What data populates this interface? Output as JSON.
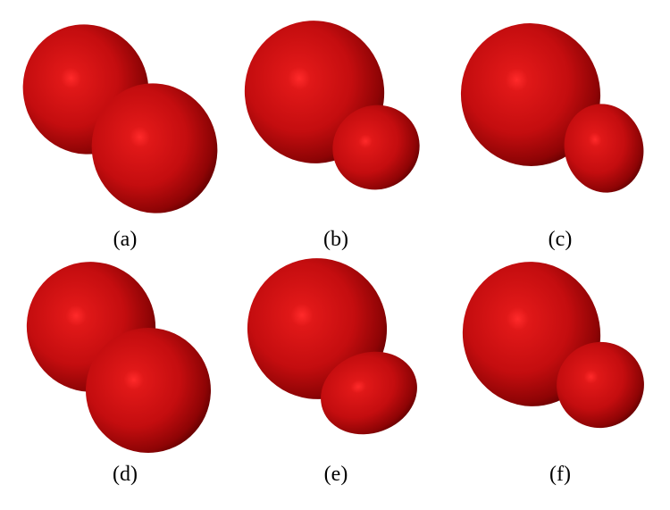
{
  "panels": [
    {
      "caption": "(a)"
    },
    {
      "caption": "(b)"
    },
    {
      "caption": "(c)"
    },
    {
      "caption": "(d)"
    },
    {
      "caption": "(e)"
    },
    {
      "caption": "(f)"
    }
  ],
  "colors": {
    "lobe_base": "#c40d0f",
    "lobe_highlight": "#ff2a2a",
    "lobe_shadow": "#5a0000",
    "background": "#ffffff"
  }
}
